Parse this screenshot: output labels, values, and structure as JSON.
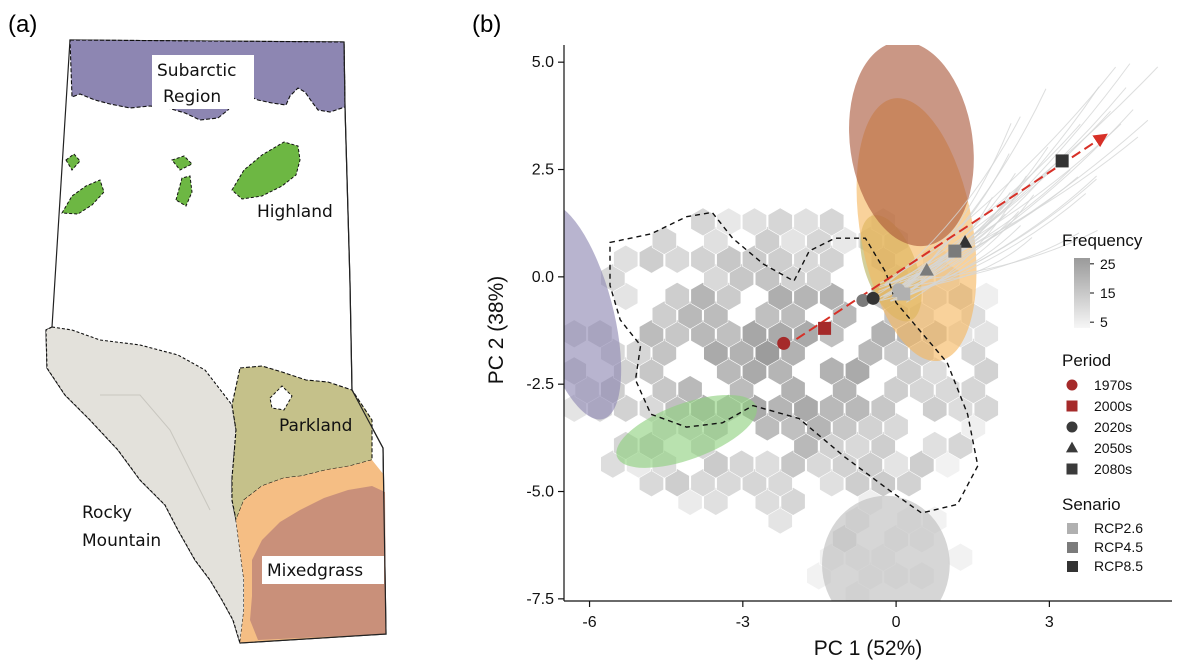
{
  "panel_a": {
    "label": "(a)",
    "regions": [
      {
        "key": "subarctic",
        "line1": "Subarctic",
        "line2": "Region",
        "color": "#8d86b2"
      },
      {
        "key": "highland",
        "line1": "Highland",
        "line2": "",
        "color": "#6db743"
      },
      {
        "key": "rocky",
        "line1": "Rocky",
        "line2": "Mountain",
        "color": "#e3e1db"
      },
      {
        "key": "parkland",
        "line1": "Parkland",
        "line2": "",
        "color": "#c5c18a"
      },
      {
        "key": "foothills",
        "line1": "",
        "line2": "",
        "color": "#f5be84"
      },
      {
        "key": "mixedgrass",
        "line1": "Mixedgrass",
        "line2": "",
        "color": "#c9907a"
      }
    ]
  },
  "panel_b": {
    "label": "(b)",
    "colors": {
      "period": "#a52a2a",
      "gray": "#3a3a3a",
      "arrow": "#d73027",
      "rcp26": "#b0b0b0",
      "rcp45": "#7b7b7b",
      "rcp85": "#333333"
    }
  },
  "chart_data": {
    "type": "scatter",
    "xlabel": "PC 1 (52%)",
    "ylabel": "PC 2 (38%)",
    "xlim": [
      -6.5,
      5.4
    ],
    "ylim": [
      -7.55,
      5.4
    ],
    "xticks": [
      -6,
      -3,
      0,
      3
    ],
    "xtick_labels": [
      "-6",
      "-3",
      "0",
      "3"
    ],
    "yticks": [
      5.0,
      2.5,
      0.0,
      -2.5,
      -5.0,
      -7.5
    ],
    "ytick_labels": [
      "5.0",
      "2.5",
      "0.0",
      "-2.5",
      "-5.0",
      "-7.5"
    ],
    "grid": false,
    "ellipses": [
      {
        "region": "subarctic",
        "cx": -6.3,
        "cy": -0.8,
        "rx": 0.75,
        "ry": 2.6,
        "angle": -15,
        "color": "#8d86b2"
      },
      {
        "region": "rocky",
        "cx": -0.2,
        "cy": -6.7,
        "rx": 1.25,
        "ry": 1.6,
        "angle": 0,
        "color": "#bdbdbd"
      },
      {
        "region": "parkland",
        "cx": -0.1,
        "cy": 0.2,
        "rx": 0.5,
        "ry": 1.3,
        "angle": -20,
        "color": "#b8b15c"
      },
      {
        "region": "foothills",
        "cx": 0.4,
        "cy": 1.1,
        "rx": 1.1,
        "ry": 3.1,
        "angle": -10,
        "color": "#f6b65e"
      },
      {
        "region": "mixedgrass",
        "cx": 0.3,
        "cy": 3.1,
        "rx": 1.2,
        "ry": 2.4,
        "angle": -8,
        "color": "#a9573a"
      },
      {
        "region": "highland",
        "cx": -4.1,
        "cy": -3.6,
        "rx": 1.45,
        "ry": 0.65,
        "angle": -20,
        "color": "#8ed07e"
      }
    ],
    "arrow": {
      "x": [
        -1.95,
        4.1
      ],
      "y": [
        -1.45,
        3.3
      ]
    },
    "points": [
      {
        "period": "1970s",
        "shape": "circle",
        "scenario": "",
        "x": -2.2,
        "y": -1.55
      },
      {
        "period": "2000s",
        "shape": "square",
        "scenario": "",
        "x": -1.4,
        "y": -1.2
      },
      {
        "period": "2020s",
        "shape": "circle",
        "scenario": "RCP2.6",
        "x": 0.05,
        "y": -0.3
      },
      {
        "period": "2020s",
        "shape": "circle",
        "scenario": "RCP4.5",
        "x": -0.65,
        "y": -0.55
      },
      {
        "period": "2020s",
        "shape": "circle",
        "scenario": "RCP8.5",
        "x": -0.45,
        "y": -0.5
      },
      {
        "period": "2050s",
        "shape": "triangle",
        "scenario": "RCP2.6",
        "x": 0.05,
        "y": -0.35
      },
      {
        "period": "2050s",
        "shape": "triangle",
        "scenario": "RCP4.5",
        "x": 0.6,
        "y": 0.15
      },
      {
        "period": "2050s",
        "shape": "triangle",
        "scenario": "RCP8.5",
        "x": 1.35,
        "y": 0.8
      },
      {
        "period": "2080s",
        "shape": "square",
        "scenario": "RCP2.6",
        "x": 0.15,
        "y": -0.4
      },
      {
        "period": "2080s",
        "shape": "square",
        "scenario": "RCP4.5",
        "x": 1.15,
        "y": 0.6
      },
      {
        "period": "2080s",
        "shape": "square",
        "scenario": "RCP8.5",
        "x": 3.25,
        "y": 2.7
      }
    ],
    "hexbin": {
      "xrange": [
        -6.3,
        2.0
      ],
      "yrange": [
        -7.4,
        1.8
      ],
      "frequency_range": [
        1,
        27
      ]
    },
    "legend": {
      "frequency": {
        "title": "Frequency",
        "ticks": [
          25,
          15,
          5
        ],
        "tick_labels": [
          "25",
          "15",
          "5"
        ],
        "range": [
          3,
          27
        ]
      },
      "period": {
        "title": "Period",
        "items": [
          {
            "label": "1970s",
            "shape": "circle",
            "color": "#a52a2a"
          },
          {
            "label": "2000s",
            "shape": "square",
            "color": "#a52a2a"
          },
          {
            "label": "2020s",
            "shape": "circle",
            "color": "#3a3a3a"
          },
          {
            "label": "2050s",
            "shape": "triangle",
            "color": "#3a3a3a"
          },
          {
            "label": "2080s",
            "shape": "square",
            "color": "#3a3a3a"
          }
        ]
      },
      "scenario": {
        "title": "Senario",
        "items": [
          {
            "label": "RCP2.6",
            "color": "#b0b0b0"
          },
          {
            "label": "RCP4.5",
            "color": "#7b7b7b"
          },
          {
            "label": "RCP8.5",
            "color": "#333333"
          }
        ]
      }
    }
  }
}
